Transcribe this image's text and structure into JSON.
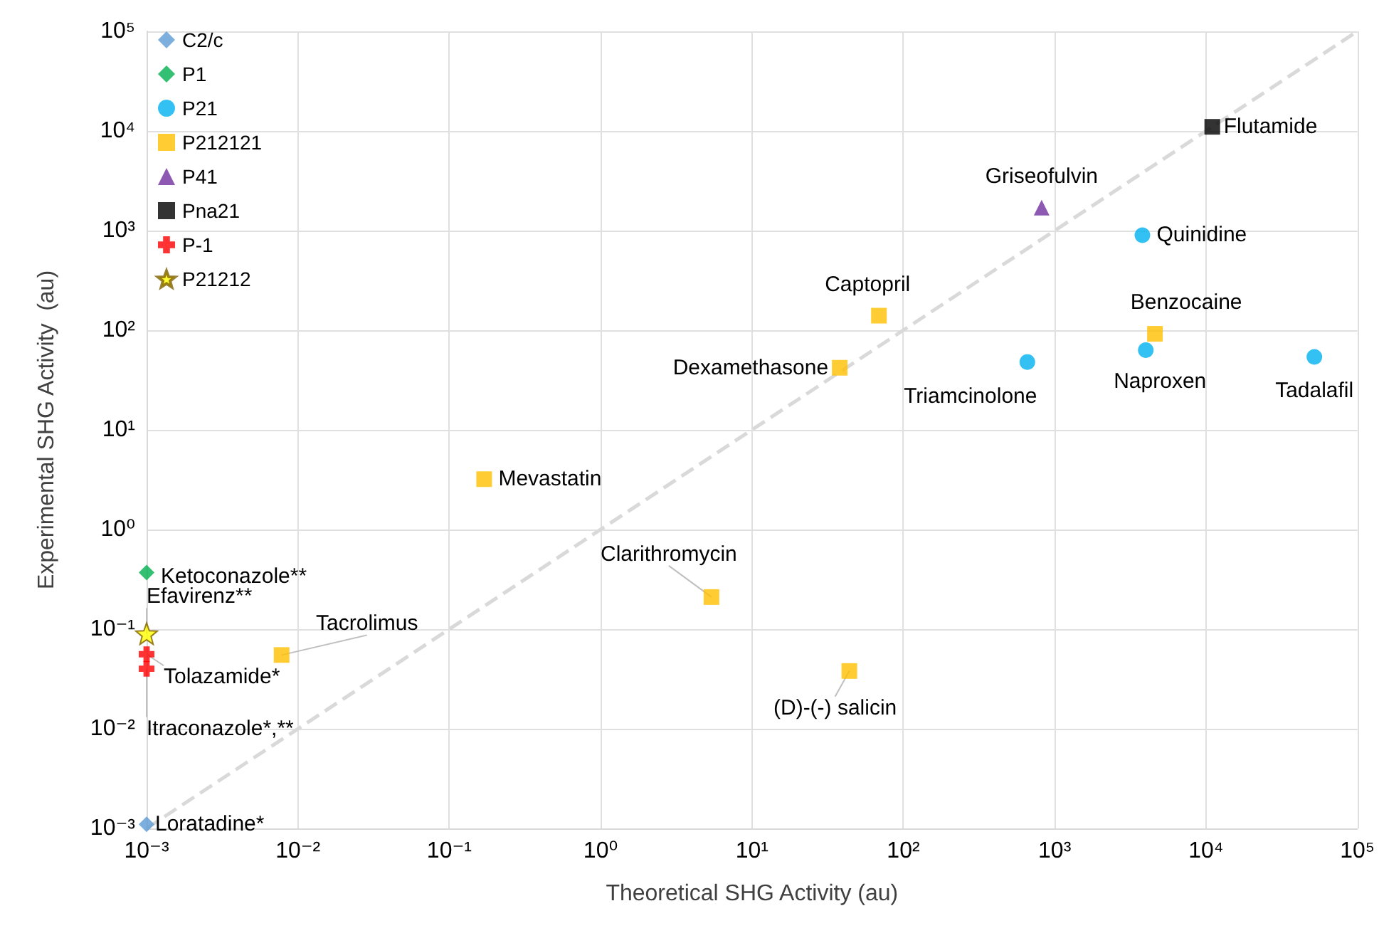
{
  "chart_data": {
    "type": "scatter",
    "xlabel": "Theoretical SHG Activity (au)",
    "ylabel": "Experimental SHG Activity  (au)",
    "log": "xy",
    "grid": true,
    "legend": "top left",
    "xlim": [
      0.001,
      100000
    ],
    "ylim": [
      0.001,
      100000
    ],
    "xticks": [
      {
        "value": 0.001,
        "label": "10⁻³"
      },
      {
        "value": 0.01,
        "label": "10⁻²"
      },
      {
        "value": 0.1,
        "label": "10⁻¹"
      },
      {
        "value": 1,
        "label": "10⁰"
      },
      {
        "value": 10,
        "label": "10¹"
      },
      {
        "value": 100,
        "label": "10²"
      },
      {
        "value": 1000,
        "label": "10³"
      },
      {
        "value": 10000,
        "label": "10⁴"
      },
      {
        "value": 100000,
        "label": "10⁵"
      }
    ],
    "yticks": [
      {
        "value": 0.001,
        "label": "10⁻³"
      },
      {
        "value": 0.01,
        "label": "10⁻²"
      },
      {
        "value": 0.1,
        "label": "10⁻¹"
      },
      {
        "value": 1,
        "label": "10⁰"
      },
      {
        "value": 10,
        "label": "10¹"
      },
      {
        "value": 100,
        "label": "10²"
      },
      {
        "value": 1000,
        "label": "10³"
      },
      {
        "value": 10000,
        "label": "10⁴"
      },
      {
        "value": 100000,
        "label": "10⁵"
      }
    ],
    "series": [
      {
        "name": "C2/c",
        "color": "#5b9bd5",
        "marker": "diamond",
        "x": [
          0.001
        ],
        "values": [
          0.0011
        ]
      },
      {
        "name": "P1",
        "color": "#00b050",
        "marker": "diamond",
        "x": [
          0.001
        ],
        "values": [
          0.37
        ]
      },
      {
        "name": "P21",
        "color": "#00b0f0",
        "marker": "circle",
        "x": [
          3800,
          660,
          4000,
          52000
        ],
        "values": [
          900,
          48,
          63,
          54
        ]
      },
      {
        "name": "P212121",
        "color": "#ffc000",
        "marker": "square",
        "x": [
          69,
          4600,
          38,
          0.17,
          5.4,
          44,
          0.0078
        ],
        "values": [
          140,
          92,
          42,
          3.2,
          0.21,
          0.038,
          0.055
        ]
      },
      {
        "name": "P41",
        "color": "#7030a0",
        "marker": "triangle",
        "x": [
          820
        ],
        "values": [
          1700
        ]
      },
      {
        "name": "Pna21",
        "color": "#000000",
        "marker": "square",
        "x": [
          11000
        ],
        "values": [
          11000
        ]
      },
      {
        "name": "P-1",
        "color": "#ff0000",
        "marker": "cross",
        "x": [
          0.001,
          0.001
        ],
        "values": [
          0.056,
          0.04
        ]
      },
      {
        "name": "P21212",
        "color": "#ffff00",
        "marker": "star",
        "x": [
          0.001
        ],
        "values": [
          0.09
        ]
      },
      {
        "type": "line",
        "color": "#d9d9d9",
        "line_style": "dashed",
        "marker": "none",
        "x": [
          0.001,
          100000
        ],
        "values": [
          0.001,
          100000
        ]
      }
    ],
    "annotations": [
      {
        "text": "Flutamide",
        "x": 11000,
        "y": 11000
      },
      {
        "text": "Griseofulvin",
        "x": 820,
        "y": 1700
      },
      {
        "text": "Quinidine",
        "x": 3800,
        "y": 900
      },
      {
        "text": "Captopril",
        "x": 69,
        "y": 140
      },
      {
        "text": "Benzocaine",
        "x": 4600,
        "y": 92
      },
      {
        "text": "Dexamethasone",
        "x": 38,
        "y": 42
      },
      {
        "text": "Triamcinolone",
        "x": 660,
        "y": 48
      },
      {
        "text": "Naproxen",
        "x": 4000,
        "y": 63
      },
      {
        "text": "Tadalafil",
        "x": 52000,
        "y": 54
      },
      {
        "text": "Mevastatin",
        "x": 0.17,
        "y": 3.2
      },
      {
        "text": "Clarithromycin",
        "x": 5.4,
        "y": 0.21
      },
      {
        "text": "(D)-(-) salicin",
        "x": 44,
        "y": 0.038
      },
      {
        "text": "Tacrolimus",
        "x": 0.0078,
        "y": 0.055
      },
      {
        "text": "Ketoconazole**",
        "x": 0.001,
        "y": 0.37
      },
      {
        "text": "Efavirenz**",
        "x": 0.001,
        "y": 0.09
      },
      {
        "text": "Tolazamide*",
        "x": 0.001,
        "y": 0.056
      },
      {
        "text": "Itraconazole*,**",
        "x": 0.001,
        "y": 0.04
      },
      {
        "text": "Loratadine*",
        "x": 0.001,
        "y": 0.0011
      }
    ]
  }
}
